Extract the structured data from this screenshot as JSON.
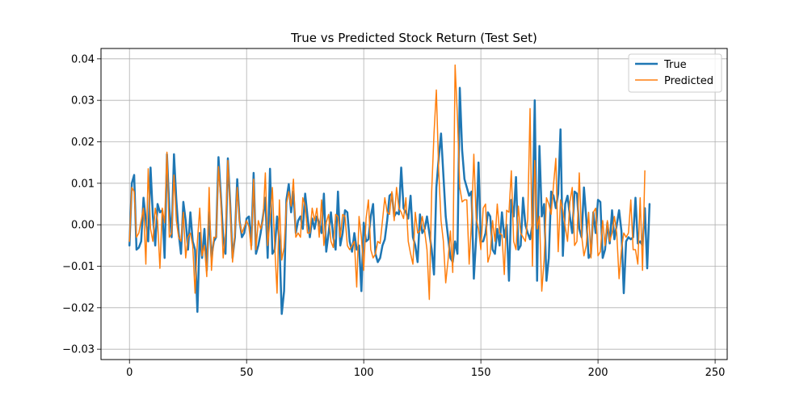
{
  "chart_data": {
    "type": "line",
    "title": "True vs Predicted Stock Return (Test Set)",
    "xlabel": "",
    "ylabel": "",
    "xlim": [
      -12.15,
      255.15
    ],
    "ylim": [
      -0.0325,
      0.0425
    ],
    "x_ticks": [
      0,
      50,
      100,
      150,
      200,
      250
    ],
    "x_tick_labels": [
      "0",
      "50",
      "100",
      "150",
      "200",
      "250"
    ],
    "y_ticks": [
      -0.03,
      -0.02,
      -0.01,
      0.0,
      0.01,
      0.02,
      0.03,
      0.04
    ],
    "y_tick_labels": [
      "−0.03",
      "−0.02",
      "−0.01",
      "0.00",
      "0.01",
      "0.02",
      "0.03",
      "0.04"
    ],
    "grid": true,
    "legend_position": "top-right",
    "x_start": 0,
    "series": [
      {
        "name": "True",
        "color": "#1f77b4",
        "linewidth": 2.5,
        "values": [
          -0.005,
          0.01,
          0.012,
          -0.006,
          -0.0055,
          -0.004,
          0.0065,
          0.001,
          -0.004,
          0.0138,
          0.002,
          -0.005,
          0.005,
          0.003,
          0.0035,
          -0.008,
          0.017,
          0.004,
          -0.003,
          0.017,
          0.006,
          -0.002,
          -0.007,
          0.0055,
          0.001,
          -0.006,
          0.003,
          -0.004,
          -0.006,
          -0.021,
          -0.002,
          -0.008,
          -0.001,
          -0.011,
          0.003,
          -0.008,
          -0.004,
          -0.003,
          0.0163,
          0.007,
          -0.003,
          -0.007,
          0.016,
          0.005,
          -0.008,
          -0.003,
          0.011,
          0.001,
          -0.003,
          -0.002,
          0.0015,
          0.002,
          -0.005,
          0.0125,
          -0.007,
          -0.005,
          -0.002,
          0.002,
          0.0065,
          -0.008,
          0.0135,
          -0.007,
          -0.006,
          0.002,
          -0.004,
          -0.0215,
          -0.016,
          0.006,
          0.0098,
          0.003,
          0.008,
          -0.002,
          0.001,
          0.002,
          -0.001,
          0.0075,
          0.002,
          -0.003,
          0.0015,
          -0.001,
          0.002,
          0.0003,
          -0.002,
          0.0075,
          -0.0065,
          -0.002,
          0.003,
          -0.003,
          -0.006,
          0.008,
          -0.005,
          -0.002,
          0.0035,
          0.003,
          -0.004,
          -0.0065,
          -0.002,
          -0.006,
          -0.005,
          -0.016,
          0.0005,
          -0.004,
          -0.0035,
          0.002,
          0.005,
          -0.007,
          -0.009,
          -0.008,
          -0.005,
          -0.0035,
          0.001,
          0.007,
          0.0075,
          0.002,
          0.003,
          0.0025,
          0.0138,
          0.004,
          0.003,
          0.0015,
          0.007,
          -0.003,
          -0.005,
          -0.009,
          0.0025,
          -0.002,
          -0.001,
          0.002,
          -0.002,
          -0.006,
          -0.012,
          0.009,
          0.016,
          0.022,
          0.012,
          0.002,
          -0.003,
          -0.008,
          -0.009,
          -0.004,
          -0.007,
          0.033,
          0.018,
          0.011,
          0.009,
          0.007,
          0.008,
          -0.013,
          -0.003,
          0.015,
          -0.004,
          -0.004,
          -0.002,
          0.003,
          0.002,
          -0.006,
          -0.007,
          -0.001,
          -0.005,
          0.003,
          -0.003,
          0.0,
          -0.0135,
          0.006,
          0.002,
          0.0115,
          -0.006,
          -0.005,
          0.0065,
          0.0,
          -0.002,
          -0.0035,
          0.0,
          0.03,
          -0.0135,
          0.019,
          0.002,
          0.005,
          -0.0135,
          -0.008,
          0.008,
          0.007,
          0.004,
          0.0075,
          0.023,
          -0.0075,
          0.005,
          0.007,
          0.002,
          -0.002,
          0.008,
          0.0075,
          -0.001,
          -0.003,
          0.009,
          0.0015,
          -0.008,
          -0.007,
          0.003,
          -0.002,
          0.006,
          0.0055,
          -0.008,
          -0.006,
          0.0005,
          -0.0045,
          0.0035,
          -0.0035,
          0.0,
          0.0035,
          -0.0015,
          -0.0165,
          -0.004,
          -0.003,
          -0.0035,
          -0.003,
          0.0065,
          -0.0045,
          -0.004,
          -0.005,
          0.004,
          -0.0105,
          0.005
        ]
      },
      {
        "name": "Predicted",
        "color": "#ff7f0e",
        "linewidth": 1.5,
        "values": [
          -0.004,
          0.009,
          0.008,
          -0.003,
          -0.002,
          0.001,
          0.004,
          -0.0095,
          0.0135,
          -0.001,
          -0.004,
          0.004,
          0.001,
          -0.0105,
          0.004,
          0.0005,
          0.0175,
          -0.003,
          -0.002,
          0.012,
          0.001,
          -0.003,
          -0.004,
          0.003,
          -0.008,
          -0.003,
          -0.002,
          -0.005,
          -0.0165,
          -0.004,
          0.004,
          -0.0075,
          -0.005,
          -0.0125,
          0.009,
          -0.011,
          -0.003,
          -0.003,
          0.014,
          0.006,
          -0.008,
          -0.002,
          0.0155,
          0.004,
          -0.009,
          -0.002,
          0.009,
          0.0005,
          -0.002,
          -0.0005,
          0.001,
          -0.0005,
          -0.006,
          0.011,
          -0.006,
          0.001,
          -0.001,
          0.001,
          0.0125,
          -0.005,
          0.001,
          0.009,
          -0.005,
          -0.0165,
          0.006,
          -0.0085,
          -0.0055,
          0.005,
          0.008,
          0.0045,
          0.011,
          -0.003,
          -0.002,
          -0.003,
          0.0065,
          0.0045,
          -0.002,
          -0.002,
          0.004,
          0.001,
          0.004,
          -0.003,
          0.006,
          -0.005,
          0.0005,
          0.0025,
          -0.004,
          -0.0055,
          0.0025,
          0.002,
          -0.003,
          0.0025,
          0.002,
          -0.005,
          -0.006,
          -0.005,
          -0.004,
          -0.015,
          0.002,
          -0.003,
          -0.011,
          0.0015,
          0.006,
          -0.006,
          -0.008,
          -0.007,
          -0.004,
          -0.0045,
          0.001,
          0.0065,
          0.003,
          0.0025,
          0.008,
          0.001,
          0.009,
          0.004,
          0.003,
          0.0015,
          0.0065,
          -0.004,
          -0.007,
          -0.0095,
          0.003,
          -0.002,
          -0.0015,
          0.002,
          -0.0015,
          -0.006,
          -0.018,
          0.008,
          0.022,
          0.0325,
          0.013,
          0.001,
          -0.004,
          -0.014,
          -0.0085,
          -0.0015,
          -0.0115,
          0.0385,
          0.026,
          0.009,
          0.0055,
          0.006,
          0.006,
          -0.0095,
          0.0005,
          0.017,
          0.0015,
          -0.001,
          -0.006,
          0.004,
          0.005,
          -0.009,
          -0.007,
          0.001,
          -0.004,
          0.005,
          -0.002,
          -0.0025,
          -0.012,
          0.0035,
          0.003,
          0.013,
          -0.004,
          -0.006,
          0.0045,
          -0.002,
          -0.003,
          -0.004,
          0.0015,
          0.028,
          -0.01,
          0.0155,
          -0.001,
          0.002,
          -0.016,
          -0.0085,
          0.0065,
          0.005,
          0.0025,
          0.0095,
          0.016,
          -0.0065,
          0.006,
          0.0035,
          -0.0005,
          -0.004,
          0.0055,
          0.009,
          -0.005,
          -0.004,
          0.0125,
          -0.0025,
          -0.0075,
          -0.005,
          0.003,
          -0.008,
          0.003,
          0.004,
          -0.0075,
          -0.0065,
          0.001,
          -0.005,
          0.001,
          -0.004,
          -0.002,
          0.002,
          -0.002,
          -0.013,
          -0.006,
          -0.002,
          -0.003,
          -0.002,
          0.006,
          -0.006,
          -0.006,
          -0.0095,
          0.0065,
          -0.011,
          0.013
        ]
      }
    ]
  }
}
